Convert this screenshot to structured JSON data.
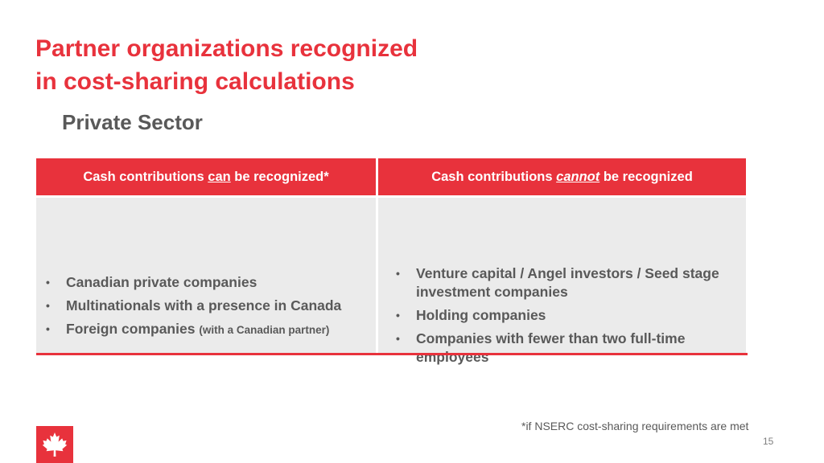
{
  "slide": {
    "title_line1": "Partner organizations recognized",
    "title_line2": "in cost-sharing calculations",
    "subtitle": "Private Sector",
    "footnote": "*if NSERC cost-sharing requirements are met",
    "page_number": "15"
  },
  "table": {
    "left_header": {
      "prefix": "Cash contributions ",
      "emphasis": "can",
      "suffix": " be recognized*"
    },
    "right_header": {
      "prefix": "Cash contributions ",
      "emphasis": "cannot",
      "suffix": " be recognized"
    },
    "left_items": [
      {
        "text": "Canadian private companies",
        "note": ""
      },
      {
        "text": "Multinationals with a presence in Canada",
        "note": ""
      },
      {
        "text": "Foreign companies",
        "note": "(with a Canadian partner)"
      }
    ],
    "right_items": [
      {
        "text": "Venture capital / Angel investors / Seed stage investment companies"
      },
      {
        "text": "Holding companies"
      },
      {
        "text": "Companies with fewer than two full-time employees"
      }
    ],
    "bullet": "•"
  },
  "colors": {
    "accent_red": "#e8323c",
    "cell_gray": "#ebebeb",
    "text_gray": "#595959"
  },
  "icons": {
    "logo": "maple-leaf-icon"
  }
}
